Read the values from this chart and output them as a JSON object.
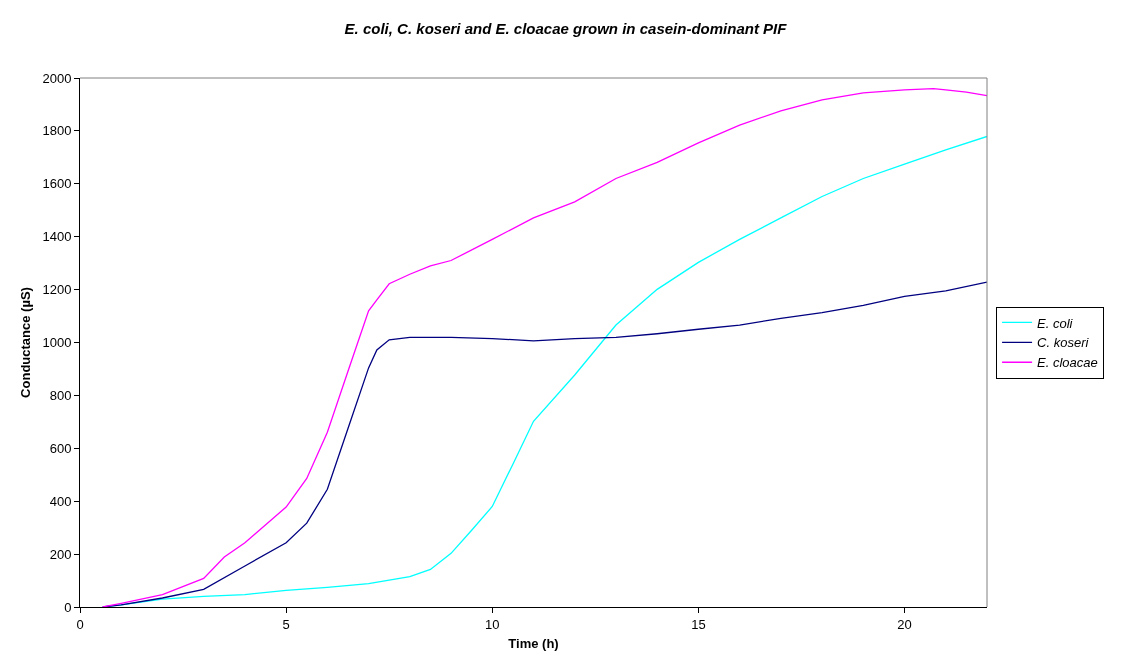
{
  "chart_data": {
    "type": "line",
    "title": "E. coli, C. koseri and E. cloacae grown in casein-dominant PIF",
    "xlabel": "Time (h)",
    "ylabel": "Conductance (µS)",
    "xlim": [
      0,
      22
    ],
    "xticks": [
      0,
      5,
      10,
      15,
      20
    ],
    "ylim": [
      0,
      2000
    ],
    "yticks": [
      0,
      200,
      400,
      600,
      800,
      1000,
      1200,
      1400,
      1600,
      1800,
      2000
    ],
    "legend": "right",
    "marker": "none",
    "line_style": "solid",
    "series": [
      {
        "name": "E. coli",
        "color": "#00ffff",
        "x": [
          0.55,
          1,
          2,
          3,
          4,
          5,
          6,
          7,
          8,
          8.5,
          9,
          9.5,
          10,
          10.5,
          11,
          12,
          13,
          14,
          15,
          16,
          17,
          18,
          19,
          20,
          21,
          22
        ],
        "values": [
          0,
          8,
          30,
          40,
          47,
          63,
          74,
          88,
          115,
          142,
          203,
          290,
          380,
          540,
          702,
          877,
          1066,
          1201,
          1303,
          1390,
          1471,
          1552,
          1620,
          1674,
          1728,
          1779
        ]
      },
      {
        "name": "C. koseri",
        "color": "#000080",
        "x": [
          0.55,
          1,
          2,
          3,
          4,
          5,
          5.5,
          6,
          6.5,
          7,
          7.2,
          7.5,
          8,
          9,
          10,
          11,
          12,
          13,
          14,
          15,
          16,
          17,
          18,
          19,
          20,
          21,
          22
        ],
        "values": [
          0,
          8,
          34,
          67,
          155,
          243,
          317,
          445,
          675,
          904,
          972,
          1010,
          1019,
          1019,
          1015,
          1006,
          1015,
          1019,
          1033,
          1050,
          1066,
          1091,
          1113,
          1140,
          1174,
          1195,
          1228
        ]
      },
      {
        "name": "E. cloacae",
        "color": "#ff00ff",
        "x": [
          0.55,
          1,
          2,
          3,
          3.5,
          4,
          5,
          5.5,
          6,
          6.5,
          7,
          7.2,
          7.5,
          8,
          8.5,
          9,
          10,
          11,
          12,
          13,
          14,
          15,
          16,
          17,
          18,
          19,
          20,
          20.7,
          21,
          21.5,
          22
        ],
        "values": [
          0,
          14,
          47,
          108,
          189,
          243,
          378,
          486,
          661,
          891,
          1120,
          1161,
          1222,
          1258,
          1290,
          1310,
          1390,
          1471,
          1532,
          1620,
          1681,
          1755,
          1822,
          1876,
          1917,
          1944,
          1955,
          1960,
          1955,
          1947,
          1933
        ]
      }
    ]
  }
}
